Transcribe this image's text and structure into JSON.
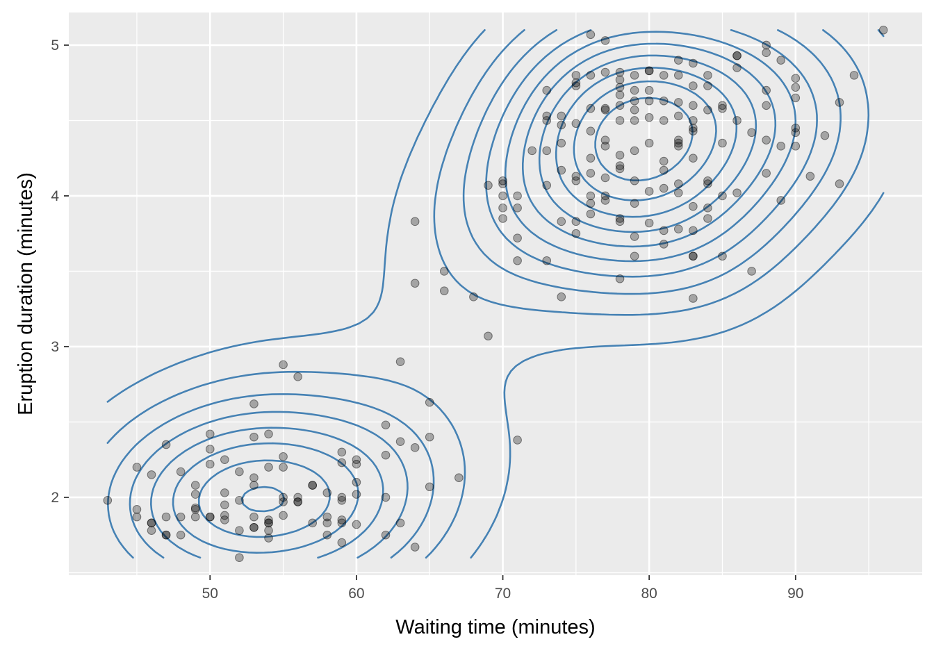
{
  "chart_data": {
    "type": "scatter",
    "title": "",
    "xlabel": "Waiting time (minutes)",
    "ylabel": "Eruption duration (minutes)",
    "xlim": [
      40.35,
      98.65
    ],
    "ylim": [
      1.4835,
      5.2165
    ],
    "x_ticks": [
      50,
      60,
      70,
      80,
      90
    ],
    "x_tick_labels": [
      "50",
      "60",
      "70",
      "80",
      "90"
    ],
    "y_ticks": [
      2,
      3,
      4,
      5
    ],
    "y_tick_labels": [
      "2",
      "3",
      "4",
      "5"
    ],
    "grid": true,
    "legend": "none",
    "colors": {
      "panel": "#EBEBEB",
      "grid": "#FFFFFF",
      "points": "#000000",
      "contour": "#4682B4"
    },
    "series": [
      {
        "type": "scatter",
        "point_opacity": 0.3,
        "points": [
          [
            43,
            1.98
          ],
          [
            45,
            2.2
          ],
          [
            45,
            1.92
          ],
          [
            45,
            1.87
          ],
          [
            46,
            2.15
          ],
          [
            46,
            1.83
          ],
          [
            46,
            1.83
          ],
          [
            46,
            1.78
          ],
          [
            47,
            2.35
          ],
          [
            47,
            1.87
          ],
          [
            47,
            1.75
          ],
          [
            47,
            1.75
          ],
          [
            48,
            2.17
          ],
          [
            48,
            1.87
          ],
          [
            48,
            1.75
          ],
          [
            49,
            2.08
          ],
          [
            49,
            2.02
          ],
          [
            49,
            1.93
          ],
          [
            49,
            1.92
          ],
          [
            49,
            1.87
          ],
          [
            50,
            2.42
          ],
          [
            50,
            2.32
          ],
          [
            50,
            2.22
          ],
          [
            50,
            1.87
          ],
          [
            50,
            1.87
          ],
          [
            51,
            2.25
          ],
          [
            51,
            2.03
          ],
          [
            51,
            1.95
          ],
          [
            51,
            1.88
          ],
          [
            51,
            1.85
          ],
          [
            52,
            2.17
          ],
          [
            52,
            1.98
          ],
          [
            52,
            1.78
          ],
          [
            52,
            1.6
          ],
          [
            53,
            2.62
          ],
          [
            53,
            2.4
          ],
          [
            53,
            2.13
          ],
          [
            53,
            2.08
          ],
          [
            53,
            1.87
          ],
          [
            53,
            1.8
          ],
          [
            53,
            1.8
          ],
          [
            54,
            2.42
          ],
          [
            54,
            2.2
          ],
          [
            54,
            1.85
          ],
          [
            54,
            1.83
          ],
          [
            54,
            1.83
          ],
          [
            54,
            1.78
          ],
          [
            54,
            1.73
          ],
          [
            55,
            2.88
          ],
          [
            55,
            2.27
          ],
          [
            55,
            2.2
          ],
          [
            55,
            2.0
          ],
          [
            55,
            1.97
          ],
          [
            55,
            1.88
          ],
          [
            56,
            2.8
          ],
          [
            56,
            2.0
          ],
          [
            56,
            1.97
          ],
          [
            56,
            1.97
          ],
          [
            57,
            2.08
          ],
          [
            57,
            2.08
          ],
          [
            57,
            1.83
          ],
          [
            58,
            2.03
          ],
          [
            58,
            1.87
          ],
          [
            58,
            1.83
          ],
          [
            58,
            1.75
          ],
          [
            59,
            2.3
          ],
          [
            59,
            2.23
          ],
          [
            59,
            2.0
          ],
          [
            59,
            1.98
          ],
          [
            59,
            1.85
          ],
          [
            59,
            1.83
          ],
          [
            59,
            1.7
          ],
          [
            60,
            2.25
          ],
          [
            60,
            2.22
          ],
          [
            60,
            2.1
          ],
          [
            60,
            2.02
          ],
          [
            60,
            1.82
          ],
          [
            62,
            2.48
          ],
          [
            62,
            2.28
          ],
          [
            62,
            2.0
          ],
          [
            62,
            1.75
          ],
          [
            63,
            2.9
          ],
          [
            63,
            2.37
          ],
          [
            63,
            1.83
          ],
          [
            64,
            3.83
          ],
          [
            64,
            3.42
          ],
          [
            64,
            2.33
          ],
          [
            64,
            1.67
          ],
          [
            65,
            2.63
          ],
          [
            65,
            2.4
          ],
          [
            65,
            2.07
          ],
          [
            66,
            3.5
          ],
          [
            66,
            3.37
          ],
          [
            67,
            2.13
          ],
          [
            68,
            3.33
          ],
          [
            69,
            4.07
          ],
          [
            69,
            3.07
          ],
          [
            70,
            4.08
          ],
          [
            70,
            4.1
          ],
          [
            70,
            4.0
          ],
          [
            70,
            3.92
          ],
          [
            70,
            3.85
          ],
          [
            71,
            4.0
          ],
          [
            71,
            3.92
          ],
          [
            71,
            3.72
          ],
          [
            71,
            3.57
          ],
          [
            71,
            2.38
          ],
          [
            72,
            4.3
          ],
          [
            73,
            4.53
          ],
          [
            73,
            4.7
          ],
          [
            73,
            4.5
          ],
          [
            73,
            4.3
          ],
          [
            73,
            4.07
          ],
          [
            73,
            3.57
          ],
          [
            74,
            4.53
          ],
          [
            74,
            4.47
          ],
          [
            74,
            4.35
          ],
          [
            74,
            4.17
          ],
          [
            74,
            3.83
          ],
          [
            74,
            3.33
          ],
          [
            75,
            4.8
          ],
          [
            75,
            4.75
          ],
          [
            75,
            4.73
          ],
          [
            75,
            4.48
          ],
          [
            75,
            4.13
          ],
          [
            75,
            4.1
          ],
          [
            75,
            3.83
          ],
          [
            75,
            3.75
          ],
          [
            76,
            5.07
          ],
          [
            76,
            4.8
          ],
          [
            76,
            4.58
          ],
          [
            76,
            4.43
          ],
          [
            76,
            4.25
          ],
          [
            76,
            4.15
          ],
          [
            76,
            4.0
          ],
          [
            76,
            3.95
          ],
          [
            76,
            3.88
          ],
          [
            77,
            5.03
          ],
          [
            77,
            4.82
          ],
          [
            77,
            4.58
          ],
          [
            77,
            4.57
          ],
          [
            77,
            4.37
          ],
          [
            77,
            4.33
          ],
          [
            77,
            4.12
          ],
          [
            77,
            4.0
          ],
          [
            77,
            3.97
          ],
          [
            78,
            4.82
          ],
          [
            78,
            4.77
          ],
          [
            78,
            4.72
          ],
          [
            78,
            4.67
          ],
          [
            78,
            4.6
          ],
          [
            78,
            4.5
          ],
          [
            78,
            4.27
          ],
          [
            78,
            4.2
          ],
          [
            78,
            4.18
          ],
          [
            78,
            3.85
          ],
          [
            78,
            3.83
          ],
          [
            78,
            3.45
          ],
          [
            79,
            4.8
          ],
          [
            79,
            4.7
          ],
          [
            79,
            4.63
          ],
          [
            79,
            4.57
          ],
          [
            79,
            4.5
          ],
          [
            79,
            4.3
          ],
          [
            79,
            4.1
          ],
          [
            79,
            3.95
          ],
          [
            79,
            3.73
          ],
          [
            79,
            3.6
          ],
          [
            80,
            4.83
          ],
          [
            80,
            4.83
          ],
          [
            80,
            4.7
          ],
          [
            80,
            4.63
          ],
          [
            80,
            4.52
          ],
          [
            80,
            4.35
          ],
          [
            80,
            4.03
          ],
          [
            80,
            3.82
          ],
          [
            81,
            4.8
          ],
          [
            81,
            4.63
          ],
          [
            81,
            4.5
          ],
          [
            81,
            4.23
          ],
          [
            81,
            4.17
          ],
          [
            81,
            4.05
          ],
          [
            81,
            3.77
          ],
          [
            81,
            3.68
          ],
          [
            82,
            4.9
          ],
          [
            82,
            4.8
          ],
          [
            82,
            4.62
          ],
          [
            82,
            4.53
          ],
          [
            82,
            4.37
          ],
          [
            82,
            4.35
          ],
          [
            82,
            4.33
          ],
          [
            82,
            4.08
          ],
          [
            82,
            4.02
          ],
          [
            82,
            3.78
          ],
          [
            83,
            4.88
          ],
          [
            83,
            4.73
          ],
          [
            83,
            4.6
          ],
          [
            83,
            4.5
          ],
          [
            83,
            4.45
          ],
          [
            83,
            4.43
          ],
          [
            83,
            4.25
          ],
          [
            83,
            3.93
          ],
          [
            83,
            3.77
          ],
          [
            83,
            3.6
          ],
          [
            83,
            3.6
          ],
          [
            83,
            3.32
          ],
          [
            84,
            4.8
          ],
          [
            84,
            4.73
          ],
          [
            84,
            4.57
          ],
          [
            84,
            4.1
          ],
          [
            84,
            4.08
          ],
          [
            84,
            3.92
          ],
          [
            84,
            3.85
          ],
          [
            85,
            4.6
          ],
          [
            85,
            4.58
          ],
          [
            85,
            4.35
          ],
          [
            85,
            4.0
          ],
          [
            85,
            3.6
          ],
          [
            86,
            4.93
          ],
          [
            86,
            4.93
          ],
          [
            86,
            4.85
          ],
          [
            86,
            4.5
          ],
          [
            86,
            4.02
          ],
          [
            87,
            4.42
          ],
          [
            87,
            3.5
          ],
          [
            88,
            5.0
          ],
          [
            88,
            4.95
          ],
          [
            88,
            4.7
          ],
          [
            88,
            4.6
          ],
          [
            88,
            4.37
          ],
          [
            88,
            4.15
          ],
          [
            89,
            4.9
          ],
          [
            89,
            4.33
          ],
          [
            89,
            3.97
          ],
          [
            90,
            4.78
          ],
          [
            90,
            4.72
          ],
          [
            90,
            4.65
          ],
          [
            90,
            4.45
          ],
          [
            90,
            4.42
          ],
          [
            90,
            4.33
          ],
          [
            91,
            4.13
          ],
          [
            92,
            4.4
          ],
          [
            93,
            4.62
          ],
          [
            93,
            4.08
          ],
          [
            94,
            4.8
          ],
          [
            96,
            5.1
          ]
        ]
      }
    ],
    "contour_bands": 10
  }
}
